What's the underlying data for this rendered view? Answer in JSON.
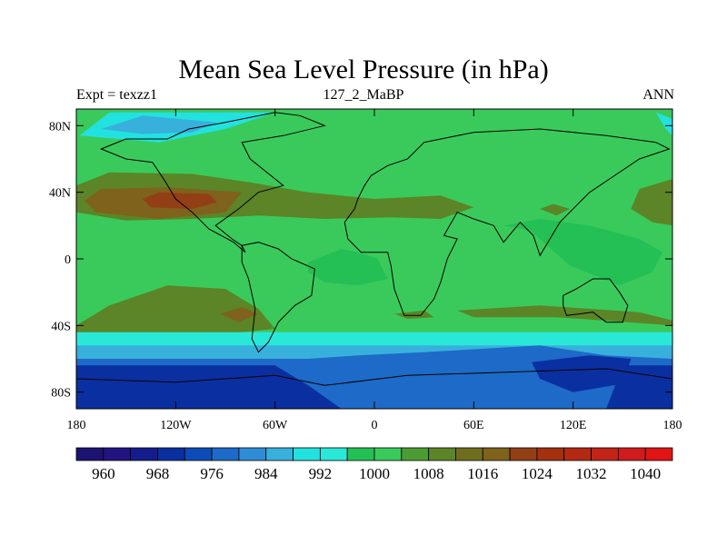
{
  "chart_data": {
    "type": "heatmap",
    "title": "Mean Sea Level Pressure (in hPa)",
    "left_label": "Expt = texzz1",
    "center_label": "127_2_MaBP",
    "right_label": "ANN",
    "x_range": [
      -180,
      180
    ],
    "y_range": [
      -90,
      90
    ],
    "x_ticks": [
      {
        "value": -180,
        "label": "180"
      },
      {
        "value": -120,
        "label": "120W"
      },
      {
        "value": -60,
        "label": "60W"
      },
      {
        "value": 0,
        "label": "0"
      },
      {
        "value": 60,
        "label": "60E"
      },
      {
        "value": 120,
        "label": "120E"
      },
      {
        "value": 180,
        "label": "180"
      }
    ],
    "y_ticks": [
      {
        "value": 80,
        "label": "80N"
      },
      {
        "value": 40,
        "label": "40N"
      },
      {
        "value": 0,
        "label": "0"
      },
      {
        "value": -40,
        "label": "40S"
      },
      {
        "value": -80,
        "label": "80S"
      }
    ],
    "colorbar": {
      "levels": [
        956,
        960,
        964,
        968,
        972,
        976,
        980,
        984,
        988,
        992,
        996,
        1000,
        1004,
        1008,
        1012,
        1016,
        1020,
        1024,
        1028,
        1032,
        1036,
        1040,
        1044
      ],
      "labels": [
        "960",
        "968",
        "976",
        "984",
        "992",
        "1000",
        "1008",
        "1016",
        "1024",
        "1032",
        "1040"
      ],
      "label_values": [
        960,
        968,
        976,
        984,
        992,
        1000,
        1008,
        1016,
        1024,
        1032,
        1040
      ],
      "colors": [
        "#1c1370",
        "#211480",
        "#151d8c",
        "#0a2fa0",
        "#0d4cb8",
        "#1e6ac8",
        "#2e8dd6",
        "#38b0dc",
        "#22e2e0",
        "#2ae8d8",
        "#24c055",
        "#3aca5c",
        "#4c9d31",
        "#5b8526",
        "#6f6e1e",
        "#7f621c",
        "#923f16",
        "#a3300f",
        "#b32a14",
        "#c22418",
        "#d11a1c",
        "#e01414"
      ]
    },
    "fields": {
      "background_value": 1002,
      "regions": [
        {
          "name": "arctic-low",
          "value": 990,
          "contour": [
            [
              -178,
              74
            ],
            [
              -160,
              88
            ],
            [
              -60,
              88
            ],
            [
              -90,
              78
            ],
            [
              -130,
              70
            ]
          ]
        },
        {
          "name": "arctic-low-east",
          "value": 990,
          "contour": [
            [
              170,
              88
            ],
            [
              180,
              84
            ],
            [
              180,
              74
            ],
            [
              176,
              78
            ]
          ]
        },
        {
          "name": "arctic-low-core",
          "value": 984,
          "contour": [
            [
              -165,
              78
            ],
            [
              -140,
              86
            ],
            [
              -95,
              82
            ],
            [
              -110,
              76
            ],
            [
              -140,
              75
            ]
          ]
        },
        {
          "name": "north-atlantic-high",
          "value": 1008,
          "contour": [
            [
              -180,
              44
            ],
            [
              -160,
              52
            ],
            [
              -110,
              51
            ],
            [
              -75,
              46
            ],
            [
              -40,
              40
            ],
            [
              0,
              36
            ],
            [
              40,
              38
            ],
            [
              60,
              31
            ],
            [
              40,
              24
            ],
            [
              10,
              25
            ],
            [
              -30,
              24
            ],
            [
              -70,
              26
            ],
            [
              -110,
              24
            ],
            [
              -150,
              23
            ],
            [
              -180,
              28
            ]
          ]
        },
        {
          "name": "north-high-ring",
          "value": 1016,
          "contour": [
            [
              -175,
              35
            ],
            [
              -165,
              42
            ],
            [
              -125,
              43
            ],
            [
              -80,
              40
            ],
            [
              -90,
              28
            ],
            [
              -130,
              24
            ],
            [
              -168,
              28
            ]
          ]
        },
        {
          "name": "north-high-core",
          "value": 1020,
          "contour": [
            [
              -140,
              36
            ],
            [
              -130,
              40
            ],
            [
              -100,
              39
            ],
            [
              -95,
              34
            ],
            [
              -110,
              30
            ],
            [
              -135,
              31
            ]
          ]
        },
        {
          "name": "pacific-east-high",
          "value": 1008,
          "contour": [
            [
              180,
              48
            ],
            [
              160,
              42
            ],
            [
              155,
              30
            ],
            [
              168,
              22
            ],
            [
              180,
              20
            ]
          ]
        },
        {
          "name": "asia-low",
          "value": 996,
          "contour": [
            [
              78,
              20
            ],
            [
              94,
              17
            ],
            [
              118,
              -4
            ],
            [
              148,
              -16
            ],
            [
              168,
              -8
            ],
            [
              174,
              4
            ],
            [
              160,
              12
            ],
            [
              130,
              20
            ],
            [
              100,
              24
            ]
          ]
        },
        {
          "name": "equatorial-low",
          "value": 996,
          "contour": [
            [
              -40,
              -2
            ],
            [
              -20,
              6
            ],
            [
              -10,
              4
            ],
            [
              2,
              0
            ],
            [
              8,
              -12
            ],
            [
              -10,
              -16
            ],
            [
              -30,
              -14
            ],
            [
              -40,
              -8
            ]
          ]
        },
        {
          "name": "south-high",
          "value": 1008,
          "contour": [
            [
              -180,
              -40
            ],
            [
              -160,
              -28
            ],
            [
              -125,
              -16
            ],
            [
              -90,
              -18
            ],
            [
              -70,
              -30
            ],
            [
              -60,
              -42
            ],
            [
              -100,
              -46
            ],
            [
              -140,
              -45
            ],
            [
              -180,
              -44
            ]
          ]
        },
        {
          "name": "south-high-core",
          "value": 1016,
          "contour": [
            [
              -93,
              -33
            ],
            [
              -80,
              -29
            ],
            [
              -70,
              -33
            ],
            [
              -82,
              -38
            ]
          ]
        },
        {
          "name": "south-band-1",
          "value": 1008,
          "contour": [
            [
              50,
              -31
            ],
            [
              100,
              -28
            ],
            [
              160,
              -32
            ],
            [
              180,
              -37
            ],
            [
              180,
              -40
            ],
            [
              110,
              -35
            ],
            [
              60,
              -35
            ]
          ]
        },
        {
          "name": "south-band-2",
          "value": 1008,
          "contour": [
            [
              12,
              -33
            ],
            [
              30,
              -31
            ],
            [
              36,
              -35
            ],
            [
              20,
              -36
            ]
          ]
        },
        {
          "name": "southern-ring-1",
          "value": 992,
          "contour": [
            [
              -180,
              -44
            ],
            [
              180,
              -44
            ],
            [
              180,
              -90
            ],
            [
              -180,
              -90
            ]
          ]
        },
        {
          "name": "southern-ring-2",
          "value": 984,
          "contour": [
            [
              -180,
              -52
            ],
            [
              180,
              -52
            ],
            [
              180,
              -90
            ],
            [
              -180,
              -90
            ]
          ]
        },
        {
          "name": "southern-ring-3",
          "value": 976,
          "contour": [
            [
              -180,
              -60
            ],
            [
              -40,
              -60
            ],
            [
              -10,
              -58
            ],
            [
              30,
              -56
            ],
            [
              100,
              -52
            ],
            [
              140,
              -58
            ],
            [
              180,
              -60
            ],
            [
              180,
              -90
            ],
            [
              -180,
              -90
            ]
          ]
        },
        {
          "name": "southern-core-east",
          "value": 968,
          "contour": [
            [
              95,
              -62
            ],
            [
              130,
              -58
            ],
            [
              155,
              -60
            ],
            [
              150,
              -75
            ],
            [
              120,
              -80
            ],
            [
              100,
              -72
            ]
          ]
        },
        {
          "name": "southern-core-west",
          "value": 968,
          "contour": [
            [
              -180,
              -64
            ],
            [
              -60,
              -64
            ],
            [
              -40,
              -76
            ],
            [
              -20,
              -90
            ],
            [
              -180,
              -90
            ]
          ]
        },
        {
          "name": "southern-core-far-east",
          "value": 968,
          "contour": [
            [
              150,
              -64
            ],
            [
              180,
              -64
            ],
            [
              180,
              -90
            ],
            [
              140,
              -90
            ]
          ]
        },
        {
          "name": "north-band-east",
          "value": 1008,
          "contour": [
            [
              100,
              30
            ],
            [
              110,
              26
            ],
            [
              118,
              30
            ],
            [
              108,
              33
            ]
          ]
        }
      ]
    }
  }
}
